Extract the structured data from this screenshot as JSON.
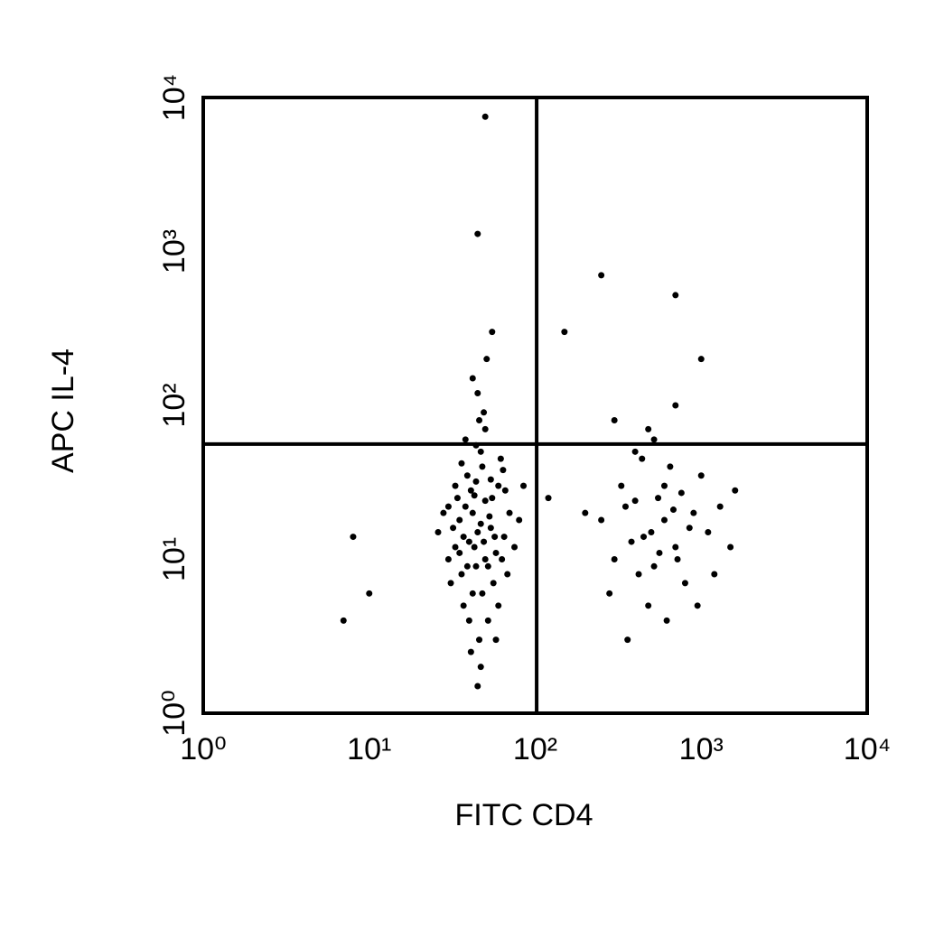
{
  "chart_data": {
    "type": "scatter",
    "x_label": "FITC CD4",
    "y_label": "APC IL-4",
    "xscale": "log",
    "yscale": "log",
    "xlim": [
      1,
      10000
    ],
    "ylim": [
      1,
      10000
    ],
    "xticks": [
      {
        "value": 1,
        "label": "10⁰"
      },
      {
        "value": 10,
        "label": "10¹"
      },
      {
        "value": 100,
        "label": "10²"
      },
      {
        "value": 1000,
        "label": "10³"
      },
      {
        "value": 10000,
        "label": "10⁴"
      }
    ],
    "yticks": [
      {
        "value": 1,
        "label": "10⁰"
      },
      {
        "value": 10,
        "label": "10¹"
      },
      {
        "value": 100,
        "label": "10²"
      },
      {
        "value": 1000,
        "label": "10³"
      },
      {
        "value": 10000,
        "label": "10⁴"
      }
    ],
    "quadrant": {
      "x": 102,
      "y": 56
    },
    "color": "#000000",
    "x": [
      45,
      38,
      52,
      33,
      60,
      42,
      48,
      35,
      55,
      40,
      30,
      65,
      44,
      50,
      36,
      58,
      46,
      41,
      53,
      32,
      70,
      47,
      39,
      62,
      43,
      37,
      56,
      49,
      34,
      75,
      42,
      51,
      28,
      45,
      54,
      38,
      60,
      47,
      31,
      66,
      44,
      57,
      36,
      50,
      40,
      85,
      26,
      48,
      33,
      63,
      45,
      55,
      39,
      47,
      52,
      35,
      42,
      68,
      49,
      30,
      80,
      43,
      58,
      37,
      46,
      54,
      41,
      64,
      50,
      44,
      500,
      350,
      700,
      420,
      900,
      600,
      300,
      1100,
      480,
      650,
      250,
      800,
      550,
      400,
      1300,
      720,
      330,
      950,
      450,
      600,
      280,
      1000,
      520,
      760,
      380,
      1500,
      620,
      440,
      850,
      560,
      300,
      700,
      480,
      1200,
      360,
      200,
      680,
      1600,
      520,
      400,
      50,
      45,
      8,
      10,
      7,
      250,
      700,
      1000,
      150,
      120
    ],
    "values": [
      15,
      22,
      9,
      12,
      30,
      6,
      40,
      18,
      25,
      4,
      10,
      14,
      55,
      70,
      8,
      11,
      3,
      28,
      19,
      16,
      20,
      2,
      35,
      45,
      12,
      5,
      7,
      90,
      25,
      12,
      150,
      200,
      20,
      1.5,
      33,
      60,
      5,
      17,
      7,
      28,
      9,
      14,
      42,
      24,
      13,
      30,
      15,
      6,
      30,
      10,
      120,
      300,
      9,
      50,
      4,
      11,
      20,
      8,
      13,
      22,
      18,
      26,
      3,
      14,
      80,
      16,
      2.5,
      38,
      10,
      32,
      15,
      22,
      12,
      8,
      20,
      30,
      10,
      15,
      5,
      40,
      18,
      7,
      25,
      50,
      22,
      10,
      30,
      5,
      14,
      18,
      6,
      35,
      9,
      27,
      13,
      12,
      4,
      45,
      16,
      11,
      80,
      100,
      70,
      8,
      3,
      20,
      21,
      28,
      60,
      24,
      7500,
      1300,
      14,
      6,
      4,
      700,
      520,
      200,
      300,
      25
    ]
  }
}
